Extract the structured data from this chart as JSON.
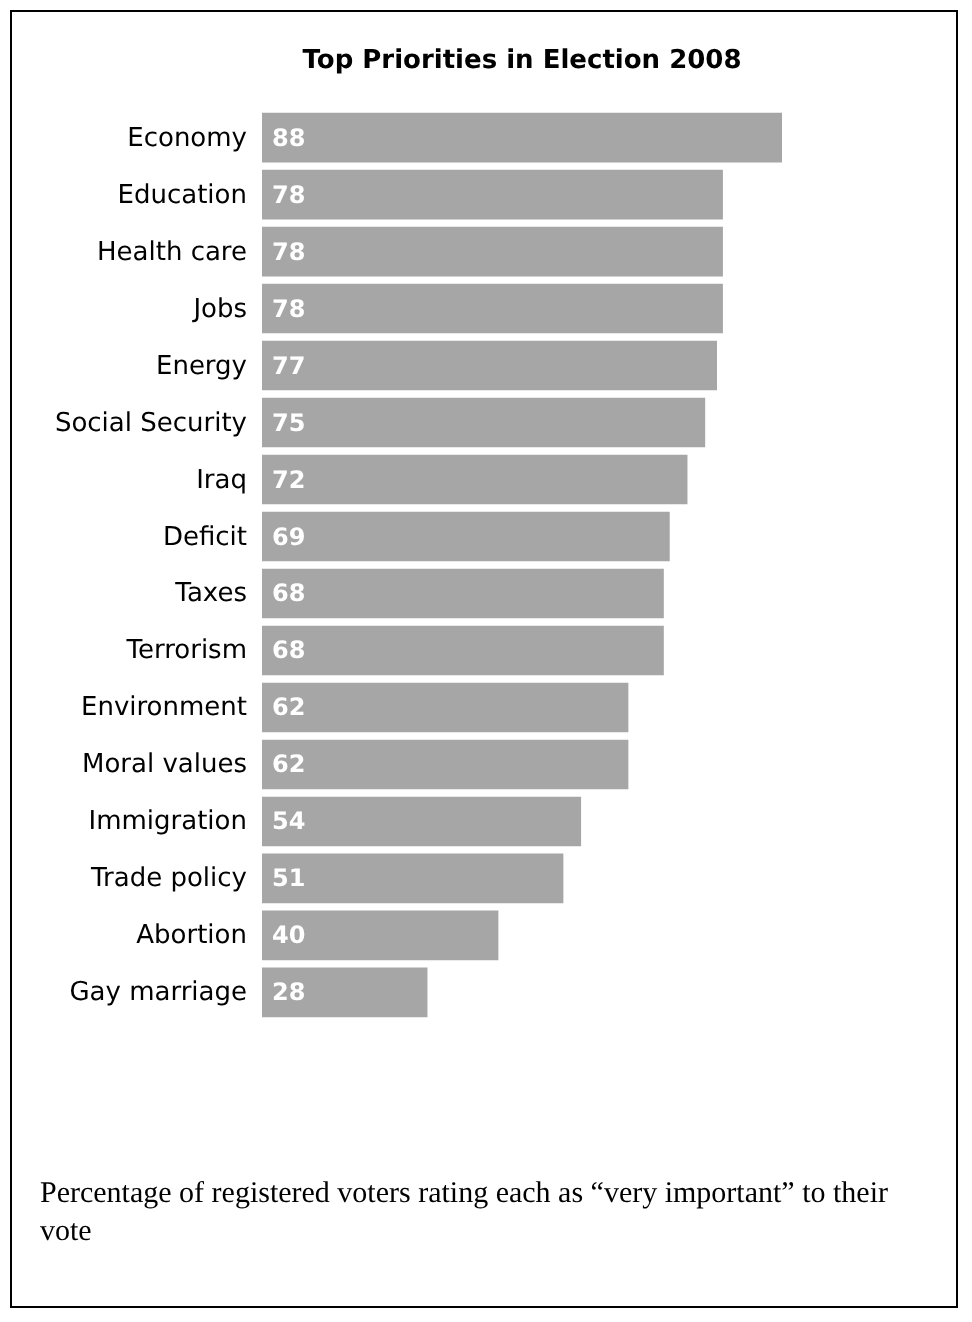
{
  "chart_data": {
    "type": "bar",
    "orientation": "horizontal",
    "title": "Top Priorities in Election 2008",
    "categories": [
      "Economy",
      "Education",
      "Health care",
      "Jobs",
      "Energy",
      "Social Security",
      "Iraq",
      "Deficit",
      "Taxes",
      "Terrorism",
      "Environment",
      "Moral values",
      "Immigration",
      "Trade policy",
      "Abortion",
      "Gay marriage"
    ],
    "values": [
      88,
      78,
      78,
      78,
      77,
      75,
      72,
      69,
      68,
      68,
      62,
      62,
      54,
      51,
      40,
      28
    ],
    "color": "#a6a6a6",
    "data_labels": true,
    "annotations": [
      "Percentage of registered voters rating each as “very important” to their vote"
    ]
  }
}
